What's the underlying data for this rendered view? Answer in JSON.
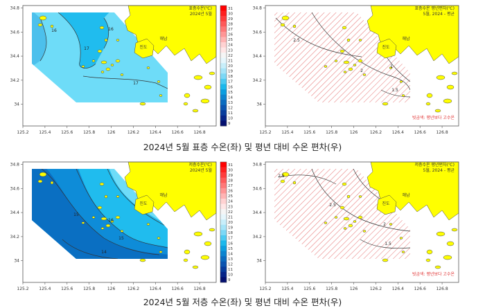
{
  "figure_rows": [
    {
      "caption": "2024년 5월 표층 수온(좌) 및 평년 대비 수온 편차(우)",
      "left": {
        "title_line1": "표층수온(℃)",
        "title_line2": "2024년 5월",
        "contour_labels": [
          "16",
          "17",
          "16",
          "17"
        ]
      },
      "right": {
        "title_line1": "표층수온 평년편차(℃)",
        "title_line2": "5월, 2024 - 평균",
        "contour_labels": [
          "2.5",
          "2",
          "1",
          "1.5"
        ],
        "note": "빗금색: 평년보다 고수온"
      }
    },
    {
      "caption": "2024년 5월 저층 수온(좌) 및 평년 대비 수온 편차(우)",
      "left": {
        "title_line1": "저층수온(℃)",
        "title_line2": "2024년 5월",
        "contour_labels": [
          "15",
          "16",
          "15",
          "14"
        ]
      },
      "right": {
        "title_line1": "저층수온 평년편차(℃)",
        "title_line2": "5월, 2024 - 평균",
        "contour_labels": [
          "2.5",
          "2.5",
          "2",
          "1.5"
        ],
        "note": "빗금색: 평년보다 고수온"
      }
    }
  ],
  "place_labels": [
    "진도",
    "해남"
  ],
  "axis": {
    "x_ticks": [
      "125.2",
      "125.4",
      "125.6",
      "125.8",
      "126",
      "126.2",
      "126.4",
      "126.6",
      "126.8"
    ],
    "y_ticks": [
      "34.8",
      "34.6",
      "34.4",
      "34.2",
      "34"
    ]
  },
  "colorbar_ticks": [
    "31",
    "30",
    "29",
    "28",
    "27",
    "26",
    "25",
    "24",
    "23",
    "22",
    "21",
    "20",
    "19",
    "18",
    "17",
    "16",
    "15",
    "14",
    "13",
    "12",
    "11",
    "10",
    "9"
  ],
  "colorbar_colors": [
    "#ff0000",
    "#ff1e1e",
    "#ff3c3c",
    "#ff5a5a",
    "#ff7878",
    "#ff9696",
    "#ffb4b4",
    "#ffd2d2",
    "#ffe6e6",
    "#f5f5f5",
    "#e6f6fc",
    "#c8eefa",
    "#a6e4f8",
    "#7cd8f6",
    "#4ccaf2",
    "#1ab8ec",
    "#0a9ee0",
    "#0a84d0",
    "#0a6cc0",
    "#0a54b0",
    "#083c9c",
    "#062488",
    "#041070"
  ],
  "colors": {
    "land": "#ffff00",
    "sea_light": "#6edcf8",
    "sea_mid": "#20bcee",
    "sea_deep": "#0e8cd8",
    "hatch": "#e77a7a",
    "note": "#e03030"
  }
}
